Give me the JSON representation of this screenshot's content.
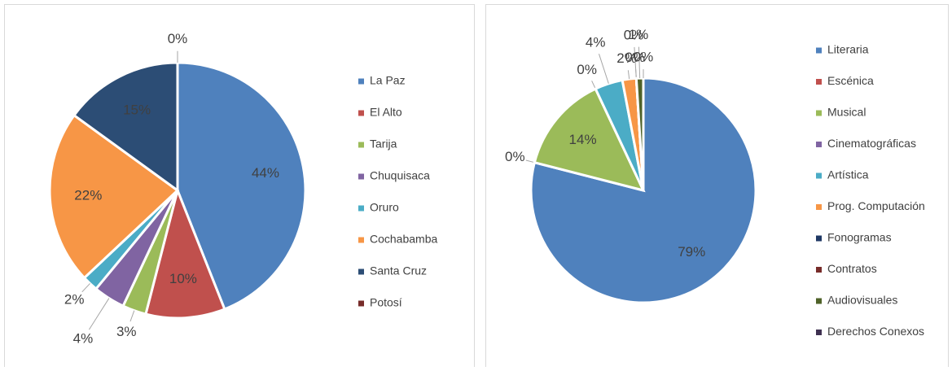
{
  "chart_data": [
    {
      "type": "pie",
      "categories": [
        "La Paz",
        "El Alto",
        "Tarija",
        "Chuquisaca",
        "Oruro",
        "Cochabamba",
        "Santa Cruz",
        "Potosí"
      ],
      "values": [
        44,
        10,
        3,
        4,
        2,
        22,
        15,
        0
      ],
      "value_labels": [
        "44%",
        "10%",
        "3%",
        "4%",
        "2%",
        "22%",
        "15%",
        "0%"
      ],
      "colors": [
        "#4f81bd",
        "#c0504d",
        "#9bbb59",
        "#8064a2",
        "#4bacc6",
        "#f79646",
        "#2c4d75",
        "#772c2a"
      ],
      "legend": "right"
    },
    {
      "type": "pie",
      "categories": [
        "Literaria",
        "Escénica",
        "Musical",
        "Cinematográficas",
        "Artística",
        "Prog. Computación",
        "Fonogramas",
        "Contratos",
        "Audiovisuales",
        "Derechos Conexos"
      ],
      "values": [
        79,
        0,
        14,
        0,
        4,
        2,
        0,
        0,
        1,
        0
      ],
      "value_labels": [
        "79%",
        "0%",
        "14%",
        "0%",
        "4%",
        "2%",
        "0%",
        "0%",
        "1%",
        "0%"
      ],
      "colors": [
        "#4f81bd",
        "#c0504d",
        "#9bbb59",
        "#8064a2",
        "#4bacc6",
        "#f79646",
        "#1f3864",
        "#772c2a",
        "#4f6228",
        "#3f3151"
      ],
      "legend": "right"
    }
  ]
}
